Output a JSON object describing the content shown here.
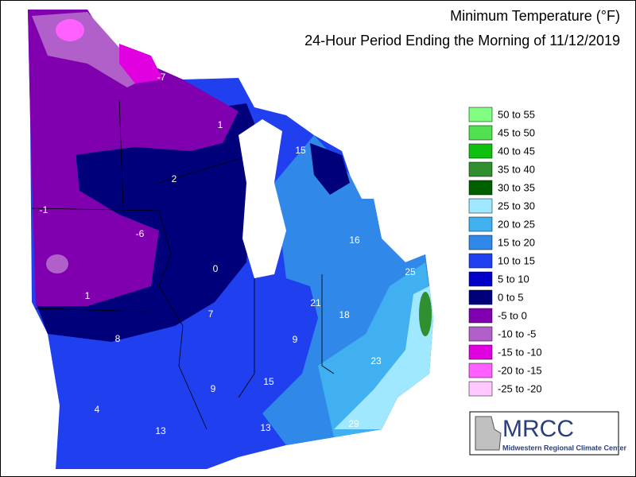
{
  "title": "Minimum Temperature (°F)",
  "subtitle": "24-Hour Period Ending the Morning of 11/12/2019",
  "legend": [
    {
      "label": "50 to 55",
      "color": "#80ff80"
    },
    {
      "label": "45 to 50",
      "color": "#50e050"
    },
    {
      "label": "40 to 45",
      "color": "#10c010"
    },
    {
      "label": "35 to 40",
      "color": "#309030"
    },
    {
      "label": "30 to 35",
      "color": "#006000"
    },
    {
      "label": "25 to 30",
      "color": "#a0e8ff"
    },
    {
      "label": "20 to 25",
      "color": "#40b0f0"
    },
    {
      "label": "15 to 20",
      "color": "#3088e8"
    },
    {
      "label": "10 to 15",
      "color": "#2040f0"
    },
    {
      "label": "5 to 10",
      "color": "#0000c8"
    },
    {
      "label": "0 to 5",
      "color": "#00007a"
    },
    {
      "label": "-5 to 0",
      "color": "#8000b0"
    },
    {
      "label": "-10 to -5",
      "color": "#b060c8"
    },
    {
      "label": "-15 to -10",
      "color": "#e000e0"
    },
    {
      "label": "-20 to -15",
      "color": "#ff60ff"
    },
    {
      "label": "-25 to -20",
      "color": "#ffc8ff"
    }
  ],
  "stations": [
    "-7",
    "1",
    "15",
    "2",
    "-1",
    "-6",
    "16",
    "0",
    "25",
    "21",
    "18",
    "1",
    "7",
    "8",
    "9",
    "23",
    "15",
    "9",
    "4",
    "13",
    "13",
    "29"
  ],
  "logo": {
    "name": "MRCC",
    "caption": "Midwestern Regional Climate Center"
  }
}
